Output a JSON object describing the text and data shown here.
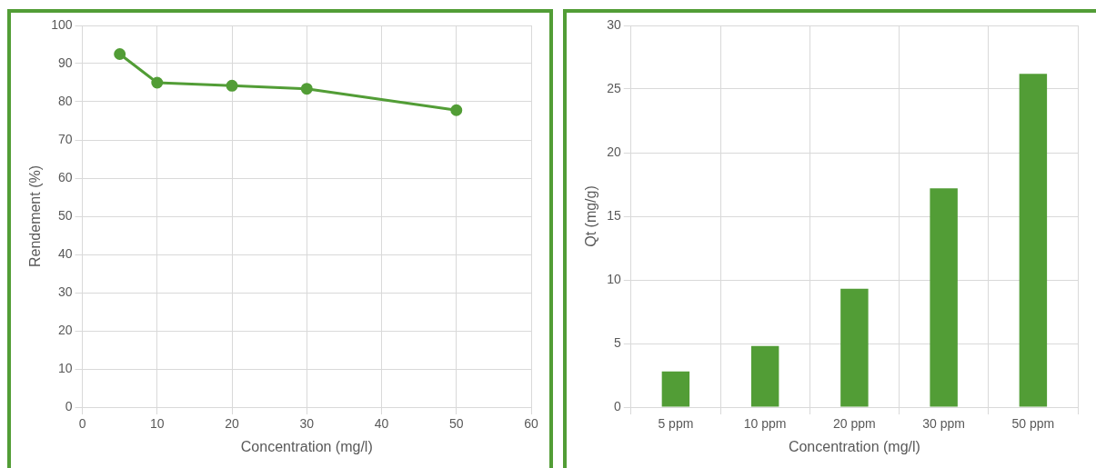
{
  "chart_data": [
    {
      "type": "line",
      "xlabel": "Concentration (mg/l)",
      "ylabel": "Rendement (%)",
      "x": [
        5,
        10,
        20,
        30,
        50
      ],
      "series": [
        {
          "color": "#529d36",
          "values": [
            92.5,
            85,
            84.2,
            83.4,
            77.8
          ]
        }
      ],
      "xlim": [
        0,
        60
      ],
      "xticks": [
        0,
        10,
        20,
        30,
        40,
        50,
        60
      ],
      "ylim": [
        0,
        100
      ],
      "yticks": [
        0,
        10,
        20,
        30,
        40,
        50,
        60,
        70,
        80,
        90,
        100
      ],
      "grid": true,
      "marker": "circle",
      "line_style": "solid"
    },
    {
      "type": "bar",
      "xlabel": "Concentration (mg/l)",
      "ylabel": "Qt (mg/g)",
      "categories": [
        "5 ppm",
        "10 ppm",
        "20 ppm",
        "30 ppm",
        "50 ppm"
      ],
      "series": [
        {
          "color": "#529d36",
          "values": [
            2.8,
            4.8,
            9.3,
            17.2,
            26.2
          ]
        }
      ],
      "ylim": [
        0,
        30
      ],
      "yticks": [
        0,
        5,
        10,
        15,
        20,
        25,
        30
      ],
      "grid": true
    }
  ]
}
